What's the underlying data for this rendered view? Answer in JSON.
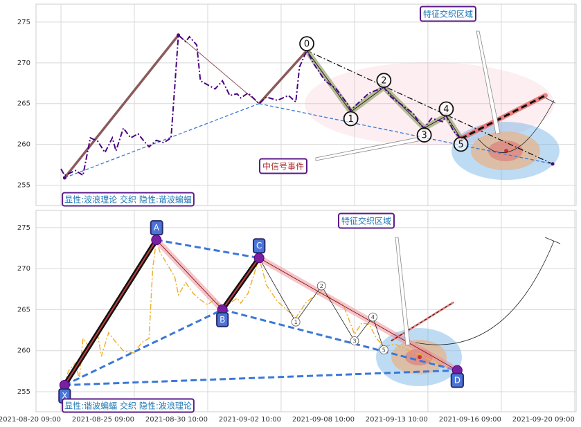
{
  "chart_data": [
    {
      "type": "line",
      "xlim": [
        -6.8,
        140.4
      ],
      "ylim": [
        252.5,
        277.2
      ],
      "yticks": [
        255,
        260,
        265,
        270,
        275
      ],
      "color": "#4b0082",
      "x": [
        0,
        1,
        4,
        6,
        8,
        10,
        12,
        14,
        15,
        17,
        19,
        21,
        23,
        24,
        26,
        28,
        30,
        31,
        32,
        34,
        35,
        37,
        38,
        40,
        42,
        44,
        46,
        48,
        49,
        51,
        54,
        56,
        59,
        62,
        64,
        65,
        67,
        69,
        72,
        75,
        78,
        79,
        82,
        84,
        88,
        90,
        93,
        96,
        98,
        99,
        101,
        104,
        105,
        107,
        109
      ],
      "values": [
        257.0,
        256.2,
        256.8,
        256.2,
        260.8,
        260.4,
        259.0,
        260.8,
        259.2,
        262.0,
        260.8,
        261.3,
        260.2,
        259.7,
        260.5,
        260.2,
        260.8,
        267.0,
        273.4,
        272.6,
        273.2,
        272.2,
        267.8,
        267.3,
        266.8,
        267.8,
        266.0,
        266.2,
        265.7,
        266.3,
        265.0,
        265.8,
        265.4,
        266.0,
        265.2,
        269.5,
        271.5,
        269.8,
        267.8,
        266.8,
        265.0,
        264.2,
        265.5,
        266.3,
        267.0,
        265.8,
        264.8,
        263.8,
        262.4,
        262.0,
        263.2,
        262.8,
        263.5,
        261.6,
        260.7
      ],
      "trend": {
        "x": [
          1,
          32,
          54,
          67
        ],
        "y": [
          255.9,
          273.4,
          265.0,
          271.5
        ]
      },
      "waves": {
        "labels": [
          "0",
          "1",
          "2",
          "3",
          "4",
          "5"
        ],
        "x": [
          67,
          79,
          88,
          99,
          105,
          109
        ],
        "y": [
          271.5,
          264.0,
          267.0,
          262.0,
          263.5,
          260.7
        ]
      },
      "end_point": {
        "x": 134,
        "y": 257.6
      },
      "signal_line": {
        "x": [
          109,
          132
        ],
        "y": [
          260.7,
          266.0
        ]
      },
      "annotations": [
        "特征交织区域",
        "中信号事件"
      ],
      "label": "显性:波浪理论 交织 隐性:谐波蝙蝠"
    },
    {
      "type": "line",
      "xlim": [
        -6.8,
        140.4
      ],
      "ylim": [
        252.55,
        277.1
      ],
      "yticks": [
        255,
        260,
        265,
        270,
        275
      ],
      "xticks": [
        {
          "value": 0,
          "label": "2021-08-20 09:00"
        },
        {
          "value": 20,
          "label": "2021-08-25 09:00"
        },
        {
          "value": 40,
          "label": "2021-08-30 10:00"
        },
        {
          "value": 60,
          "label": "2021-09-02 10:00"
        },
        {
          "value": 80,
          "label": "2021-09-08 10:00"
        },
        {
          "value": 100,
          "label": "2021-09-13 10:00"
        },
        {
          "value": 120,
          "label": "2021-09-16 09:00"
        },
        {
          "value": 140,
          "label": "2021-09-20 09:00"
        }
      ],
      "color": "#f0b030",
      "x": [
        1,
        2,
        4,
        5,
        6,
        8,
        10,
        11,
        13,
        15,
        17,
        20,
        22,
        24,
        25,
        26,
        27,
        29,
        31,
        32,
        34,
        36,
        38,
        40,
        42,
        44,
        46,
        48,
        49,
        51,
        54,
        56,
        59,
        64,
        67,
        71,
        74,
        77,
        80,
        82,
        84,
        86,
        88,
        91,
        95,
        98,
        100,
        104,
        108
      ],
      "values": [
        255.8,
        257.5,
        258.5,
        256.5,
        261.5,
        260.3,
        262.0,
        259.3,
        262.2,
        261.0,
        260.0,
        259.7,
        261.0,
        261.5,
        270.0,
        273.5,
        272.0,
        270.5,
        269.0,
        266.8,
        268.3,
        267.0,
        266.2,
        265.6,
        266.3,
        265.0,
        265.8,
        266.4,
        265.8,
        267.0,
        271.3,
        268.0,
        266.0,
        264.0,
        266.0,
        267.2,
        266.3,
        265.5,
        262.0,
        263.4,
        263.2,
        261.5,
        260.5,
        260.8,
        260.0,
        259.5,
        259.0,
        258.2,
        257.6
      ],
      "pattern": {
        "labels": [
          "X",
          "A",
          "B",
          "C",
          "D"
        ],
        "x": [
          1,
          26,
          44,
          54,
          108
        ],
        "y": [
          255.8,
          273.5,
          265.0,
          271.3,
          257.6
        ]
      },
      "sub_waves": {
        "labels": [
          "1",
          "2",
          "3",
          "4",
          "5"
        ],
        "x": [
          64,
          71,
          80,
          85,
          88
        ],
        "y": [
          263.5,
          267.9,
          261.2,
          264.1,
          260.1
        ]
      },
      "signal_line": {
        "x": [
          90,
          107
        ],
        "y": [
          261.2,
          265.9
        ]
      },
      "annotations": [
        "特征交织区域"
      ],
      "label": "显性:谐波蝙蝠 交织 隐性:波浪理论"
    }
  ]
}
